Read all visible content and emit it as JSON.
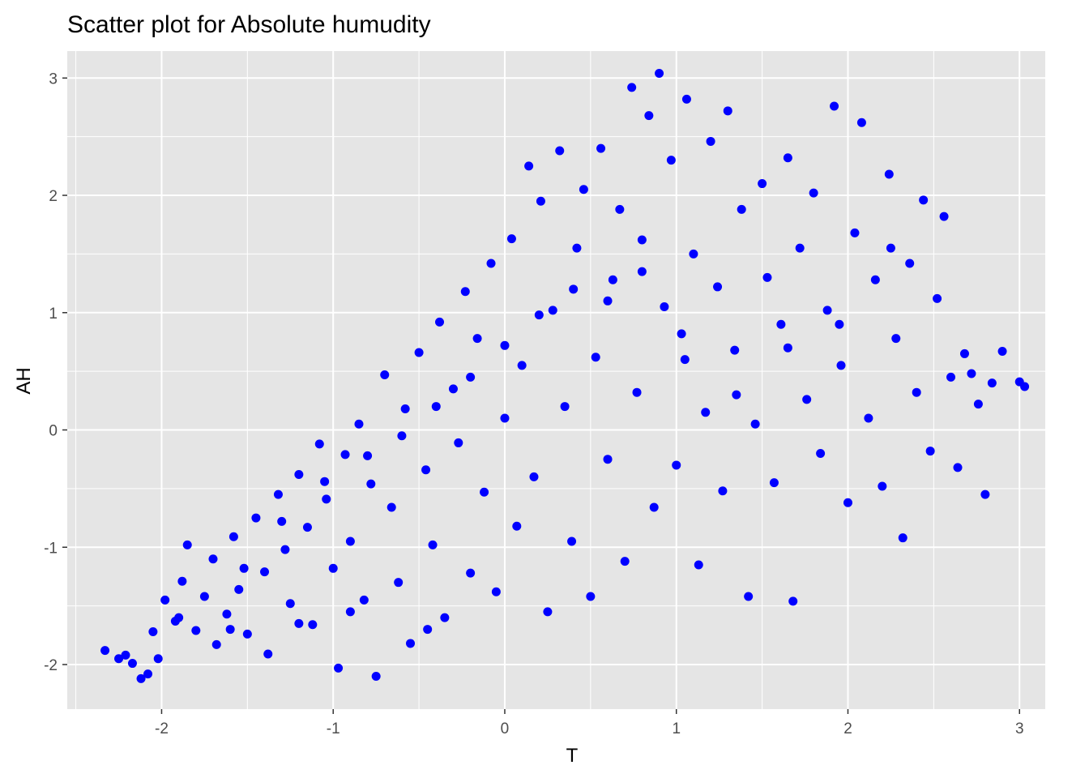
{
  "chart_data": {
    "type": "scatter",
    "title": "Scatter plot for Absolute humudity",
    "xlabel": "T",
    "ylabel": "AH",
    "xlim": [
      -2.55,
      3.15
    ],
    "ylim": [
      -2.38,
      3.23
    ],
    "x_ticks": [
      -2,
      -1,
      0,
      1,
      2,
      3
    ],
    "y_ticks": [
      -2,
      -1,
      0,
      1,
      2,
      3
    ],
    "x_tick_labels": [
      "-2",
      "-1",
      "0",
      "1",
      "2",
      "3"
    ],
    "y_tick_labels": [
      "-2",
      "-1",
      "0",
      "1",
      "2",
      "3"
    ],
    "grid": true,
    "colors": {
      "points": "#0000ff",
      "panel": "#e5e5e5",
      "grid": "#ffffff"
    },
    "series": [
      {
        "values_note": "point cloud",
        "points": [
          [
            -2.33,
            -1.88
          ],
          [
            -2.25,
            -1.95
          ],
          [
            -2.21,
            -1.92
          ],
          [
            -2.17,
            -1.99
          ],
          [
            -2.12,
            -2.12
          ],
          [
            -2.08,
            -2.08
          ],
          [
            -2.05,
            -1.72
          ],
          [
            -2.02,
            -1.95
          ],
          [
            -1.98,
            -1.45
          ],
          [
            -1.92,
            -1.63
          ],
          [
            -1.88,
            -1.29
          ],
          [
            -1.85,
            -0.98
          ],
          [
            -1.8,
            -1.71
          ],
          [
            -1.75,
            -1.42
          ],
          [
            -1.7,
            -1.1
          ],
          [
            -1.68,
            -1.83
          ],
          [
            -1.62,
            -1.57
          ],
          [
            -1.58,
            -0.91
          ],
          [
            -1.55,
            -1.36
          ],
          [
            -1.5,
            -1.74
          ],
          [
            -1.45,
            -0.75
          ],
          [
            -1.4,
            -1.21
          ],
          [
            -1.38,
            -1.91
          ],
          [
            -1.32,
            -0.55
          ],
          [
            -1.28,
            -1.02
          ],
          [
            -1.25,
            -1.48
          ],
          [
            -1.2,
            -0.38
          ],
          [
            -1.15,
            -0.83
          ],
          [
            -1.12,
            -1.66
          ],
          [
            -1.08,
            -0.12
          ],
          [
            -1.04,
            -0.59
          ],
          [
            -1.0,
            -1.18
          ],
          [
            -0.97,
            -2.03
          ],
          [
            -0.93,
            -0.21
          ],
          [
            -0.9,
            -0.95
          ],
          [
            -0.85,
            0.05
          ],
          [
            -0.82,
            -1.45
          ],
          [
            -0.78,
            -0.46
          ],
          [
            -0.75,
            -2.1
          ],
          [
            -0.7,
            0.47
          ],
          [
            -0.66,
            -0.66
          ],
          [
            -0.62,
            -1.3
          ],
          [
            -0.58,
            0.18
          ],
          [
            -0.55,
            -1.82
          ],
          [
            -0.5,
            0.66
          ],
          [
            -0.46,
            -0.34
          ],
          [
            -0.42,
            -0.98
          ],
          [
            -0.38,
            0.92
          ],
          [
            -0.35,
            -1.6
          ],
          [
            -0.3,
            0.35
          ],
          [
            -0.27,
            -0.11
          ],
          [
            -0.23,
            1.18
          ],
          [
            -0.2,
            -1.22
          ],
          [
            -0.16,
            0.78
          ],
          [
            -0.12,
            -0.53
          ],
          [
            -0.08,
            1.42
          ],
          [
            -0.05,
            -1.38
          ],
          [
            0.0,
            0.1
          ],
          [
            0.04,
            1.63
          ],
          [
            0.07,
            -0.82
          ],
          [
            0.1,
            0.55
          ],
          [
            0.14,
            2.25
          ],
          [
            0.17,
            -0.4
          ],
          [
            0.21,
            1.95
          ],
          [
            0.25,
            -1.55
          ],
          [
            0.28,
            1.02
          ],
          [
            0.32,
            2.38
          ],
          [
            0.35,
            0.2
          ],
          [
            0.39,
            -0.95
          ],
          [
            0.42,
            1.55
          ],
          [
            0.46,
            2.05
          ],
          [
            0.5,
            -1.42
          ],
          [
            0.53,
            0.62
          ],
          [
            0.56,
            2.4
          ],
          [
            0.6,
            -0.25
          ],
          [
            0.63,
            1.28
          ],
          [
            0.67,
            1.88
          ],
          [
            0.7,
            -1.12
          ],
          [
            0.74,
            2.92
          ],
          [
            0.77,
            0.32
          ],
          [
            0.8,
            1.62
          ],
          [
            0.84,
            2.68
          ],
          [
            0.87,
            -0.66
          ],
          [
            0.9,
            3.04
          ],
          [
            0.93,
            1.05
          ],
          [
            0.97,
            2.3
          ],
          [
            1.0,
            -0.3
          ],
          [
            1.03,
            0.82
          ],
          [
            1.06,
            2.82
          ],
          [
            1.1,
            1.5
          ],
          [
            1.13,
            -1.15
          ],
          [
            1.17,
            0.15
          ],
          [
            1.2,
            2.46
          ],
          [
            1.24,
            1.22
          ],
          [
            1.27,
            -0.52
          ],
          [
            1.3,
            2.72
          ],
          [
            1.34,
            0.68
          ],
          [
            1.38,
            1.88
          ],
          [
            1.42,
            -1.42
          ],
          [
            1.46,
            0.05
          ],
          [
            1.5,
            2.1
          ],
          [
            1.53,
            1.3
          ],
          [
            1.57,
            -0.45
          ],
          [
            1.61,
            0.9
          ],
          [
            1.65,
            2.32
          ],
          [
            1.68,
            -1.46
          ],
          [
            1.72,
            1.55
          ],
          [
            1.76,
            0.26
          ],
          [
            1.8,
            2.02
          ],
          [
            1.84,
            -0.2
          ],
          [
            1.88,
            1.02
          ],
          [
            1.92,
            2.76
          ],
          [
            1.96,
            0.55
          ],
          [
            2.0,
            -0.62
          ],
          [
            2.04,
            1.68
          ],
          [
            2.08,
            2.62
          ],
          [
            2.12,
            0.1
          ],
          [
            2.16,
            1.28
          ],
          [
            2.2,
            -0.48
          ],
          [
            2.24,
            2.18
          ],
          [
            2.28,
            0.78
          ],
          [
            2.32,
            -0.92
          ],
          [
            2.36,
            1.42
          ],
          [
            2.4,
            0.32
          ],
          [
            2.44,
            1.96
          ],
          [
            2.48,
            -0.18
          ],
          [
            2.52,
            1.12
          ],
          [
            2.56,
            1.82
          ],
          [
            2.6,
            0.45
          ],
          [
            2.64,
            -0.32
          ],
          [
            2.68,
            0.65
          ],
          [
            2.72,
            0.48
          ],
          [
            2.76,
            0.22
          ],
          [
            2.8,
            -0.55
          ],
          [
            2.84,
            0.4
          ],
          [
            2.9,
            0.67
          ],
          [
            3.0,
            0.41
          ],
          [
            3.03,
            0.37
          ],
          [
            -1.52,
            -1.18
          ],
          [
            -1.3,
            -0.78
          ],
          [
            -1.05,
            -0.44
          ],
          [
            -0.8,
            -0.22
          ],
          [
            -0.6,
            -0.05
          ],
          [
            -0.4,
            0.2
          ],
          [
            -0.2,
            0.45
          ],
          [
            0.0,
            0.72
          ],
          [
            0.2,
            0.98
          ],
          [
            0.4,
            1.2
          ],
          [
            0.6,
            1.1
          ],
          [
            0.8,
            1.35
          ],
          [
            1.05,
            0.6
          ],
          [
            1.35,
            0.3
          ],
          [
            1.65,
            0.7
          ],
          [
            1.95,
            0.9
          ],
          [
            2.25,
            1.55
          ],
          [
            -1.9,
            -1.6
          ],
          [
            -1.6,
            -1.7
          ],
          [
            -1.2,
            -1.65
          ],
          [
            -0.9,
            -1.55
          ],
          [
            -0.45,
            -1.7
          ]
        ]
      }
    ]
  }
}
